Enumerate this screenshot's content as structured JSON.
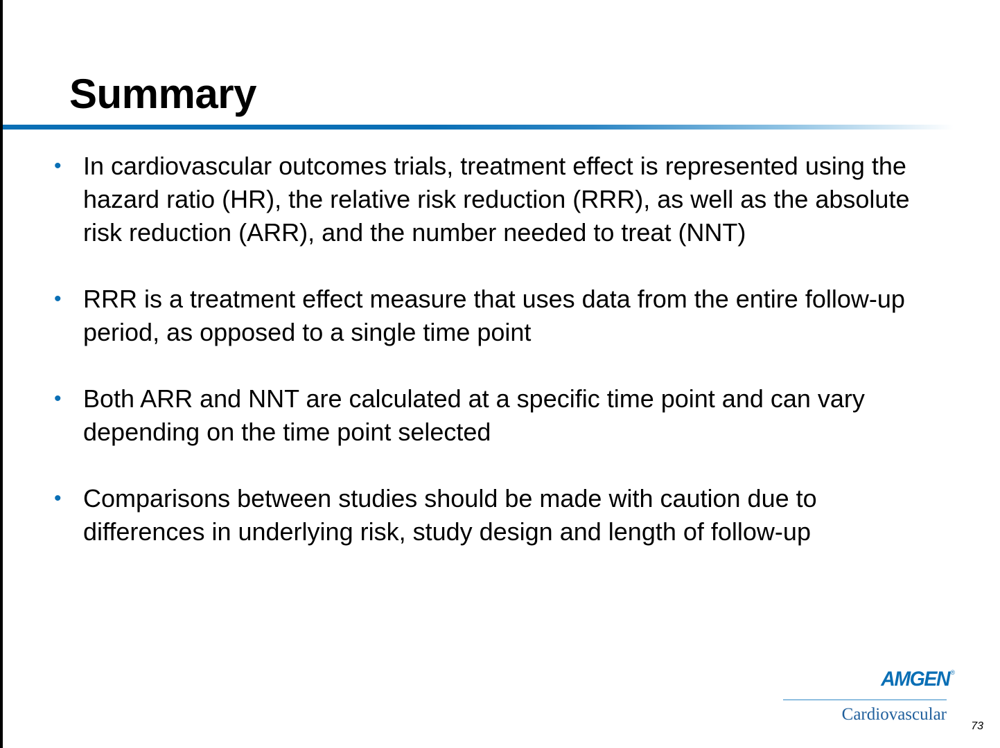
{
  "slide": {
    "title": "Summary",
    "bullets": [
      "In cardiovascular outcomes trials, treatment effect is represented using the hazard ratio (HR), the relative risk reduction (RRR), as well as the absolute risk reduction (ARR), and the number needed to treat (NNT)",
      "RRR is a treatment effect measure that uses data from the entire follow-up period, as opposed to a single time point",
      "Both ARR and NNT are calculated at a specific time point and can vary depending on the time point selected",
      "Comparisons between studies should be made with caution due to differences in underlying risk, study design and length of follow-up"
    ],
    "bullet_glyph": "•",
    "page_number": "73"
  },
  "logo": {
    "brand": "AMGEN",
    "registered": "®",
    "subtitle": "Cardiovascular"
  },
  "colors": {
    "accent_blue": "#0a6fb5",
    "logo_blue": "#1f5f9c"
  }
}
